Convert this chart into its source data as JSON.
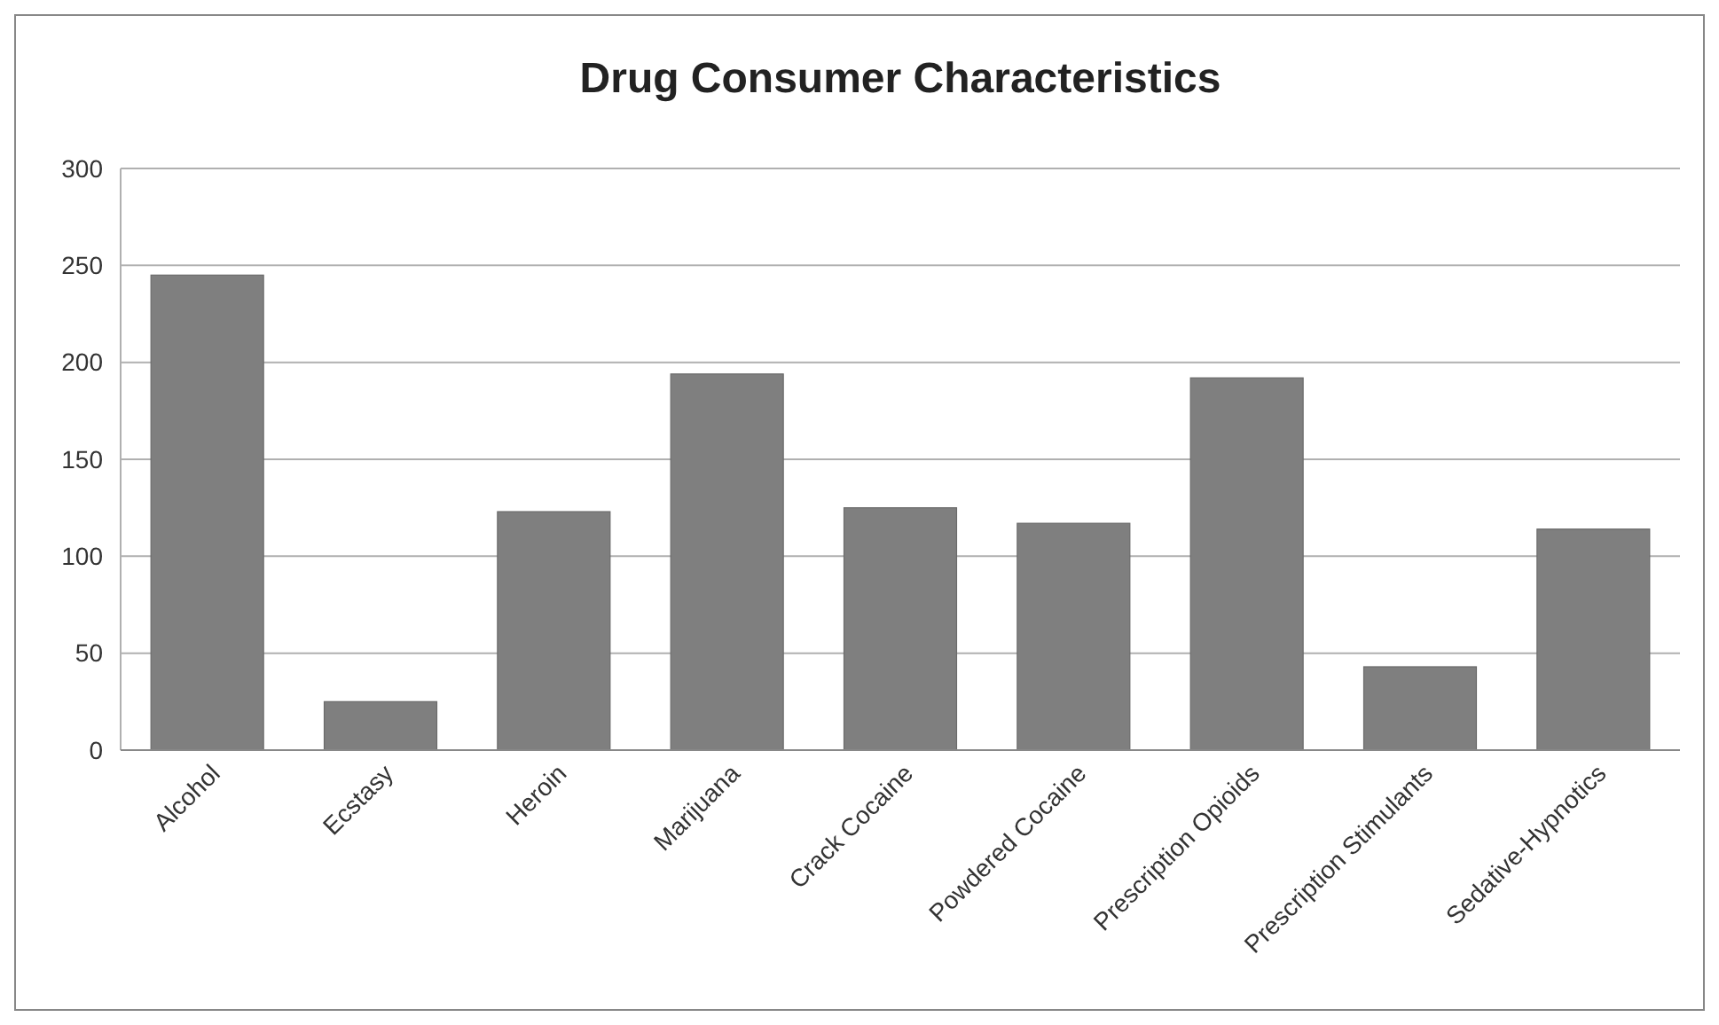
{
  "chart_data": {
    "type": "bar",
    "title": "Drug Consumer Characteristics",
    "categories": [
      "Alcohol",
      "Ecstasy",
      "Heroin",
      "Marijuana",
      "Crack Cocaine",
      "Powdered Cocaine",
      "Prescription Opioids",
      "Prescription Stimulants",
      "Sedative-Hypnotics"
    ],
    "values": [
      245,
      25,
      123,
      194,
      125,
      117,
      192,
      43,
      114
    ],
    "color": "#7f7f7f",
    "ylim": [
      0,
      300
    ],
    "yticks": [
      0,
      50,
      100,
      150,
      200,
      250,
      300
    ],
    "grid": "y"
  }
}
